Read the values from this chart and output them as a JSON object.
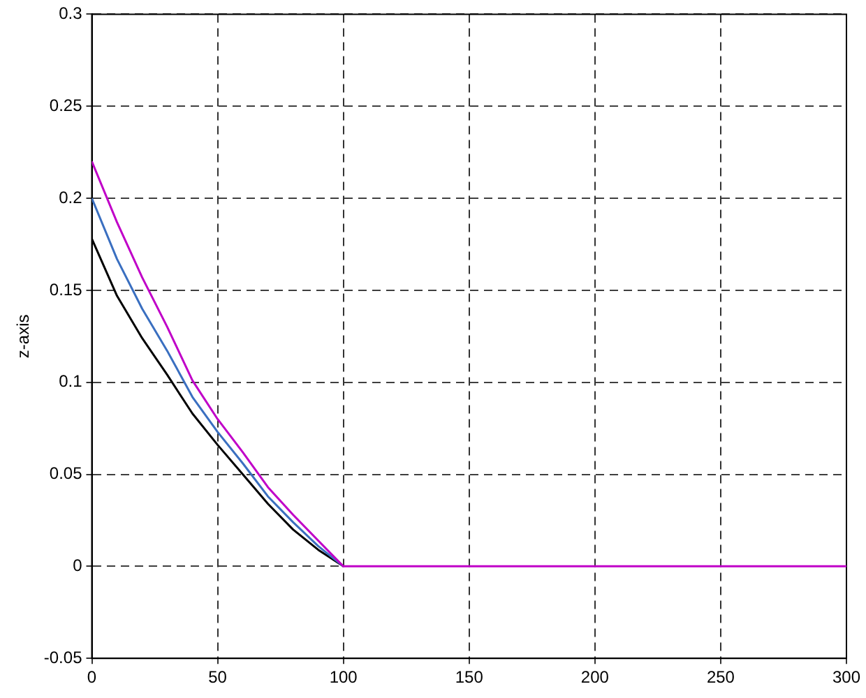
{
  "chart_data": {
    "type": "line",
    "ylabel": "z-axis",
    "xlim": [
      0,
      300
    ],
    "xticks": [
      0,
      50,
      100,
      150,
      200,
      250,
      300
    ],
    "ylim": [
      -0.05,
      0.3
    ],
    "yticks": [
      -0.05,
      0,
      0.05,
      0.1,
      0.15,
      0.2,
      0.25,
      0.3
    ],
    "grid": true,
    "legend": false,
    "marker": "none",
    "line_style": "solid",
    "series": [
      {
        "color": "#c000c8",
        "x": [
          0,
          10,
          20,
          30,
          40,
          50,
          60,
          70,
          80,
          90,
          100,
          300
        ],
        "values": [
          0.22,
          0.187,
          0.157,
          0.13,
          0.101,
          0.08,
          0.062,
          0.043,
          0.028,
          0.014,
          0,
          0
        ]
      },
      {
        "color": "#3a6fc0",
        "x": [
          0,
          10,
          20,
          30,
          40,
          50,
          60,
          70,
          80,
          90,
          100
        ],
        "values": [
          0.2,
          0.167,
          0.14,
          0.117,
          0.092,
          0.073,
          0.056,
          0.038,
          0.024,
          0.011,
          0
        ]
      },
      {
        "color": "#000000",
        "x": [
          0,
          10,
          20,
          30,
          40,
          50,
          60,
          70,
          80,
          90,
          100
        ],
        "values": [
          0.178,
          0.147,
          0.124,
          0.104,
          0.083,
          0.066,
          0.05,
          0.034,
          0.02,
          0.009,
          0
        ]
      }
    ]
  }
}
